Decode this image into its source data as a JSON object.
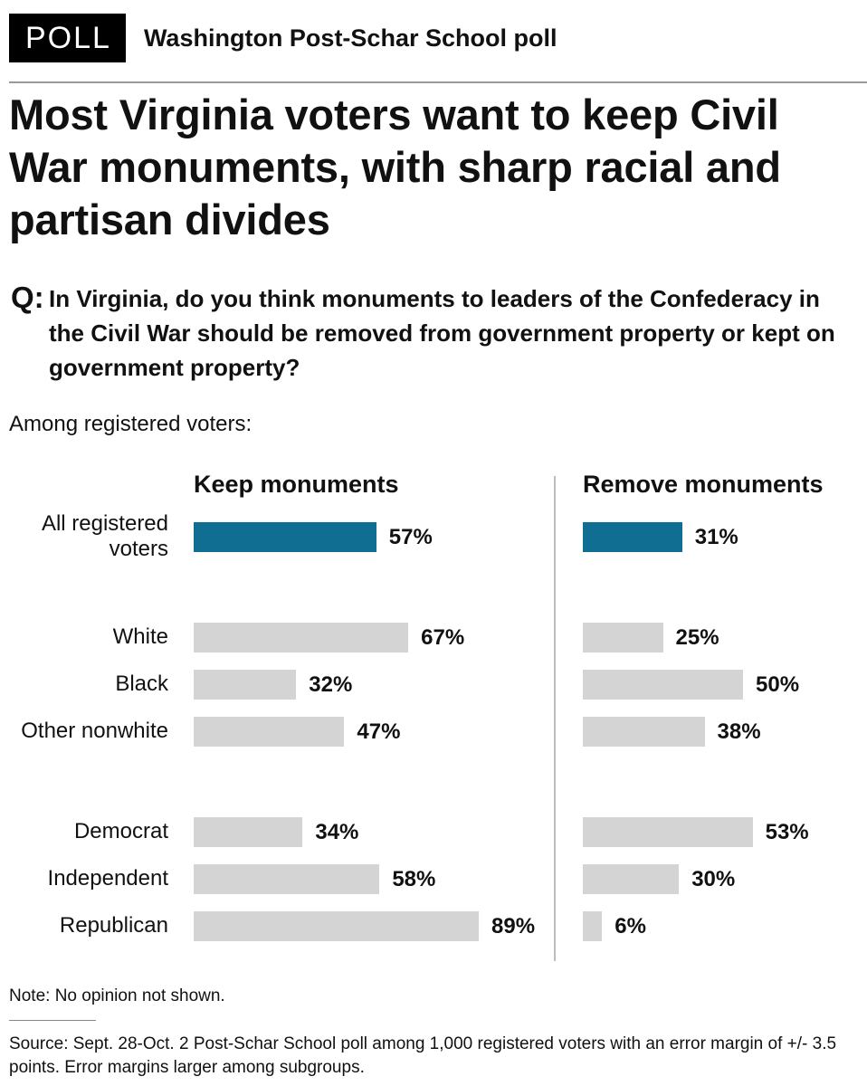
{
  "header": {
    "badge": "POLL",
    "title": "Washington Post-Schar School poll"
  },
  "headline": "Most Virginia voters want to keep Civil War monuments, with sharp racial and partisan divides",
  "question": {
    "label": "Q:",
    "text": "In Virginia, do you think monuments to leaders of the Confederacy in the Civil War should be removed from government property or kept on government property?"
  },
  "subtitle": "Among registered voters:",
  "colors": {
    "highlight": "#0f6e92",
    "bar": "#d4d4d4",
    "divider": "#bdbdbd"
  },
  "chart_data": {
    "type": "bar",
    "orientation": "horizontal",
    "title": "Most Virginia voters want to keep Civil War monuments, with sharp racial and partisan divides",
    "categories": [
      "All registered voters",
      "White",
      "Black",
      "Other nonwhite",
      "Democrat",
      "Independent",
      "Republican"
    ],
    "category_groups": [
      [
        "All registered voters"
      ],
      [
        "White",
        "Black",
        "Other nonwhite"
      ],
      [
        "Democrat",
        "Independent",
        "Republican"
      ]
    ],
    "highlighted_category": "All registered voters",
    "unit": "%",
    "series": [
      {
        "name": "Keep monuments",
        "values": [
          57,
          67,
          32,
          47,
          34,
          58,
          89
        ]
      },
      {
        "name": "Remove monuments",
        "values": [
          31,
          25,
          50,
          38,
          53,
          30,
          6
        ]
      }
    ]
  },
  "note": "Note: No opinion not shown.",
  "source": "Source: Sept. 28-Oct. 2 Post-Schar School poll among 1,000 registered voters with an error margin of +/- 3.5 points. Error margins larger among subgroups."
}
